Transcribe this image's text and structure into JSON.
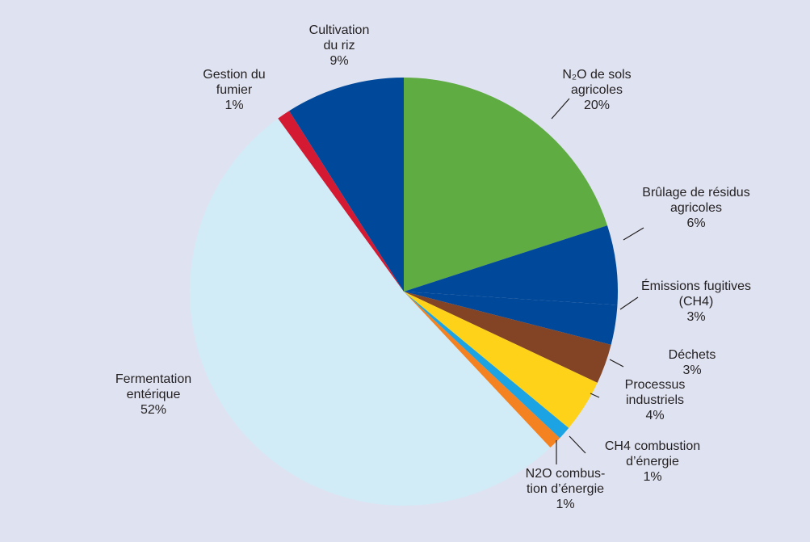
{
  "chart_data": {
    "type": "pie",
    "start_angle_deg": 0,
    "direction": "clockwise",
    "background": "#dfe3f1",
    "slices": [
      {
        "key": "n2o-sols",
        "lines": [
          "N₂O  de sols",
          "agricoles",
          "20%"
        ],
        "value": 20,
        "color": "#5eac42"
      },
      {
        "key": "brulage",
        "lines": [
          "Brûlage de résidus",
          "agricoles",
          "6%"
        ],
        "value": 6,
        "color": "#004899"
      },
      {
        "key": "emissions-fugitives",
        "lines": [
          "Émissions fugitives",
          "(CH4)",
          "3%"
        ],
        "value": 3,
        "color": "#004899"
      },
      {
        "key": "dechets",
        "lines": [
          "Déchets",
          "3%"
        ],
        "value": 3,
        "color": "#834425"
      },
      {
        "key": "processus-industriels",
        "lines": [
          "Processus",
          "industriels",
          "4%"
        ],
        "value": 4,
        "color": "#fdd219"
      },
      {
        "key": "ch4-combustion",
        "lines": [
          "CH4 combustion",
          "d’énergie",
          "1%"
        ],
        "value": 1,
        "color": "#1ba3e3"
      },
      {
        "key": "n2o-combustion",
        "lines": [
          "N2O combus-",
          "tion d’énergie",
          "1%"
        ],
        "value": 1,
        "color": "#f58220"
      },
      {
        "key": "fermentation",
        "lines": [
          "Fermentation",
          "entérique",
          "52%"
        ],
        "value": 52,
        "color": "#d1ebf7"
      },
      {
        "key": "gestion-fumier",
        "lines": [
          "Gestion du",
          "fumier",
          "1%"
        ],
        "value": 1,
        "color": "#d41a32"
      },
      {
        "key": "riz",
        "lines": [
          "Cultivation",
          "du riz",
          "9%"
        ],
        "value": 9,
        "color": "#004899"
      }
    ]
  }
}
